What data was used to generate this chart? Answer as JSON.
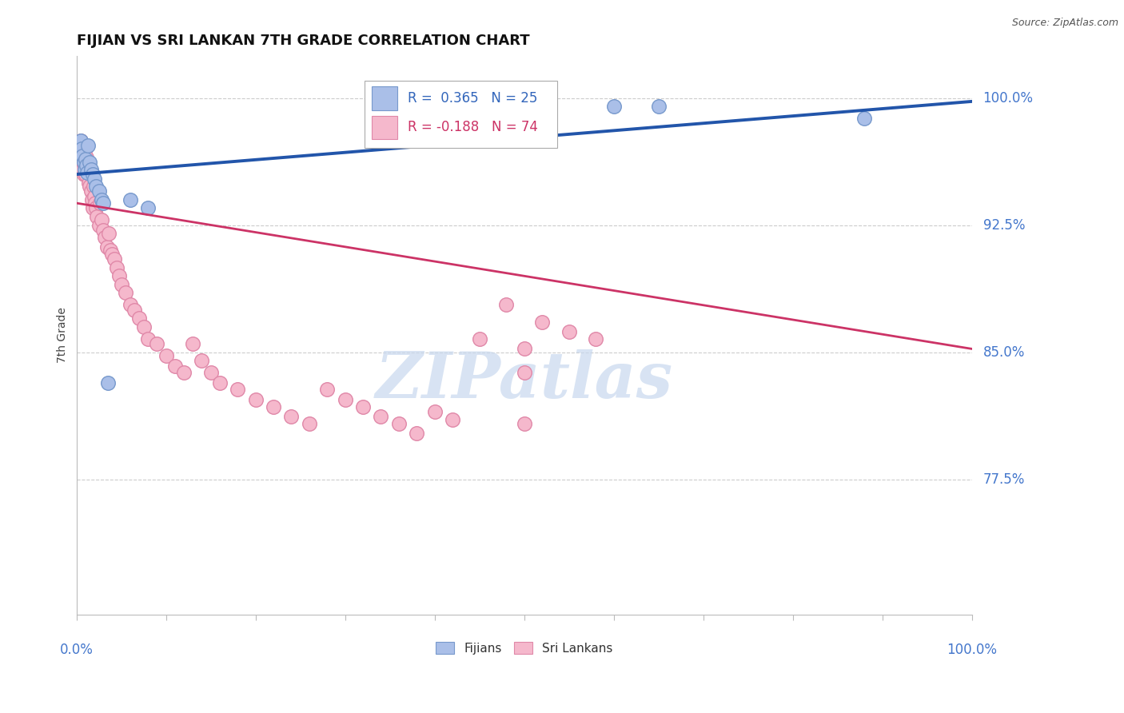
{
  "title": "FIJIAN VS SRI LANKAN 7TH GRADE CORRELATION CHART",
  "source": "Source: ZipAtlas.com",
  "ylabel": "7th Grade",
  "ytick_labels": [
    "100.0%",
    "92.5%",
    "85.0%",
    "77.5%"
  ],
  "ytick_values": [
    1.0,
    0.925,
    0.85,
    0.775
  ],
  "xmin": 0.0,
  "xmax": 1.0,
  "ymin": 0.695,
  "ymax": 1.025,
  "fijian_color": "#aabfe8",
  "fijian_edge": "#7799cc",
  "srilanka_color": "#f5b8cc",
  "srilanka_edge": "#e088a8",
  "blue_line_color": "#2255aa",
  "pink_line_color": "#cc3366",
  "watermark_color": "#c8d8ee",
  "fijian_x": [
    0.002,
    0.004,
    0.005,
    0.006,
    0.007,
    0.008,
    0.009,
    0.01,
    0.011,
    0.012,
    0.013,
    0.015,
    0.016,
    0.018,
    0.02,
    0.022,
    0.025,
    0.028,
    0.03,
    0.035,
    0.06,
    0.08,
    0.6,
    0.65,
    0.88
  ],
  "fijian_y": [
    0.972,
    0.968,
    0.975,
    0.97,
    0.966,
    0.962,
    0.958,
    0.964,
    0.96,
    0.956,
    0.972,
    0.962,
    0.958,
    0.955,
    0.952,
    0.948,
    0.945,
    0.94,
    0.938,
    0.832,
    0.94,
    0.935,
    0.995,
    0.995,
    0.988
  ],
  "srilanka_x": [
    0.002,
    0.003,
    0.004,
    0.005,
    0.005,
    0.006,
    0.007,
    0.007,
    0.008,
    0.008,
    0.009,
    0.01,
    0.01,
    0.011,
    0.012,
    0.013,
    0.014,
    0.015,
    0.016,
    0.017,
    0.018,
    0.019,
    0.02,
    0.021,
    0.022,
    0.023,
    0.025,
    0.026,
    0.028,
    0.03,
    0.032,
    0.034,
    0.036,
    0.038,
    0.04,
    0.042,
    0.045,
    0.048,
    0.05,
    0.055,
    0.06,
    0.065,
    0.07,
    0.075,
    0.08,
    0.09,
    0.1,
    0.11,
    0.12,
    0.13,
    0.14,
    0.15,
    0.16,
    0.18,
    0.2,
    0.22,
    0.24,
    0.26,
    0.28,
    0.3,
    0.32,
    0.34,
    0.36,
    0.38,
    0.4,
    0.42,
    0.45,
    0.48,
    0.5,
    0.52,
    0.55,
    0.58,
    0.5,
    0.5
  ],
  "srilanka_y": [
    0.972,
    0.968,
    0.965,
    0.975,
    0.96,
    0.97,
    0.968,
    0.958,
    0.965,
    0.955,
    0.96,
    0.97,
    0.955,
    0.965,
    0.962,
    0.958,
    0.95,
    0.948,
    0.945,
    0.94,
    0.935,
    0.948,
    0.942,
    0.938,
    0.935,
    0.93,
    0.925,
    0.938,
    0.928,
    0.922,
    0.918,
    0.912,
    0.92,
    0.91,
    0.908,
    0.905,
    0.9,
    0.895,
    0.89,
    0.885,
    0.878,
    0.875,
    0.87,
    0.865,
    0.858,
    0.855,
    0.848,
    0.842,
    0.838,
    0.855,
    0.845,
    0.838,
    0.832,
    0.828,
    0.822,
    0.818,
    0.812,
    0.808,
    0.828,
    0.822,
    0.818,
    0.812,
    0.808,
    0.802,
    0.815,
    0.81,
    0.858,
    0.878,
    0.852,
    0.868,
    0.862,
    0.858,
    0.808,
    0.838
  ],
  "blue_line_x0": 0.0,
  "blue_line_x1": 1.0,
  "blue_line_y0": 0.955,
  "blue_line_y1": 0.998,
  "pink_line_x0": 0.0,
  "pink_line_x1": 1.0,
  "pink_line_y0": 0.938,
  "pink_line_y1": 0.852,
  "legend_blue_label": "R =  0.365   N = 25",
  "legend_pink_label": "R = -0.188   N = 74",
  "watermark": "ZIPatlas",
  "background_color": "#ffffff"
}
